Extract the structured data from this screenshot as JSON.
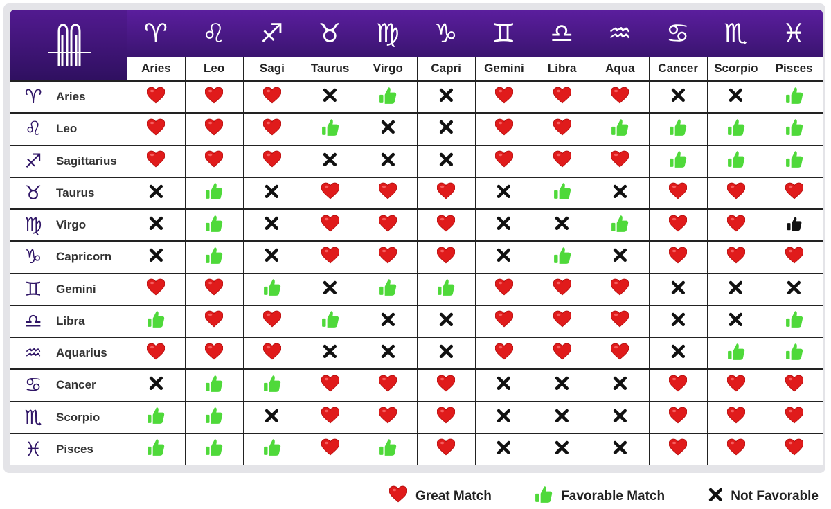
{
  "colors": {
    "header_purple": "#4a1a8a",
    "heart": "#e01b1b",
    "thumb": "#4fd93a",
    "cross": "#111111",
    "icon_purple": "#2f1566"
  },
  "columns": [
    {
      "label": "Aries",
      "icon": "aries-ram-icon",
      "glyph": "♈"
    },
    {
      "label": "Leo",
      "icon": "leo-lion-icon",
      "glyph": "♌"
    },
    {
      "label": "Sagi",
      "icon": "sagittarius-bow-icon",
      "glyph": "♐"
    },
    {
      "label": "Taurus",
      "icon": "taurus-bull-icon",
      "glyph": "♉"
    },
    {
      "label": "Virgo",
      "icon": "virgo-maiden-icon",
      "glyph": "♍"
    },
    {
      "label": "Capri",
      "icon": "capricorn-goat-icon",
      "glyph": "♑"
    },
    {
      "label": "Gemini",
      "icon": "gemini-twins-icon",
      "glyph": "♊"
    },
    {
      "label": "Libra",
      "icon": "libra-scales-icon",
      "glyph": "♎"
    },
    {
      "label": "Aqua",
      "icon": "aquarius-water-bearer-icon",
      "glyph": "♒"
    },
    {
      "label": "Cancer",
      "icon": "cancer-crab-icon",
      "glyph": "♋"
    },
    {
      "label": "Scorpio",
      "icon": "scorpio-scorpion-icon",
      "glyph": "♏"
    },
    {
      "label": "Pisces",
      "icon": "pisces-fish-icon",
      "glyph": "♓"
    }
  ],
  "rows": [
    {
      "label": "Aries",
      "icon": "aries-ram-icon",
      "glyph": "♈"
    },
    {
      "label": "Leo",
      "icon": "leo-lion-icon",
      "glyph": "♌"
    },
    {
      "label": "Sagittarius",
      "icon": "sagittarius-bow-icon",
      "glyph": "♐"
    },
    {
      "label": "Taurus",
      "icon": "taurus-bull-icon",
      "glyph": "♉"
    },
    {
      "label": "Virgo",
      "icon": "virgo-maiden-icon",
      "glyph": "♍"
    },
    {
      "label": "Capricorn",
      "icon": "capricorn-goat-icon",
      "glyph": "♑"
    },
    {
      "label": "Gemini",
      "icon": "gemini-twins-icon",
      "glyph": "♊"
    },
    {
      "label": "Libra",
      "icon": "libra-scales-icon",
      "glyph": "♎"
    },
    {
      "label": "Aquarius",
      "icon": "aquarius-water-bearer-icon",
      "glyph": "♒"
    },
    {
      "label": "Cancer",
      "icon": "cancer-crab-icon",
      "glyph": "♋"
    },
    {
      "label": "Scorpio",
      "icon": "scorpio-scorpion-icon",
      "glyph": "♏"
    },
    {
      "label": "Pisces",
      "icon": "pisces-fish-icon",
      "glyph": "♓"
    }
  ],
  "chart_data": {
    "type": "table",
    "columns": [
      "Aries",
      "Leo",
      "Sagi",
      "Taurus",
      "Virgo",
      "Capri",
      "Gemini",
      "Libra",
      "Aqua",
      "Cancer",
      "Scorpio",
      "Pisces"
    ],
    "rows": [
      "Aries",
      "Leo",
      "Sagittarius",
      "Taurus",
      "Virgo",
      "Capricorn",
      "Gemini",
      "Libra",
      "Aquarius",
      "Cancer",
      "Scorpio",
      "Pisces"
    ],
    "value_codes": {
      "H": "Great Match",
      "T": "Favorable Match",
      "X": "Not Favorable",
      "B": "Favorable Match (black thumb)"
    },
    "values": [
      [
        "H",
        "H",
        "H",
        "X",
        "T",
        "X",
        "H",
        "H",
        "H",
        "X",
        "X",
        "T"
      ],
      [
        "H",
        "H",
        "H",
        "T",
        "X",
        "X",
        "H",
        "H",
        "T",
        "T",
        "T",
        "T"
      ],
      [
        "H",
        "H",
        "H",
        "X",
        "X",
        "X",
        "H",
        "H",
        "H",
        "T",
        "T",
        "T"
      ],
      [
        "X",
        "T",
        "X",
        "H",
        "H",
        "H",
        "X",
        "T",
        "X",
        "H",
        "H",
        "H"
      ],
      [
        "X",
        "T",
        "X",
        "H",
        "H",
        "H",
        "X",
        "X",
        "T",
        "H",
        "H",
        "B"
      ],
      [
        "X",
        "T",
        "X",
        "H",
        "H",
        "H",
        "X",
        "T",
        "X",
        "H",
        "H",
        "H"
      ],
      [
        "H",
        "H",
        "T",
        "X",
        "T",
        "T",
        "H",
        "H",
        "H",
        "X",
        "X",
        "X"
      ],
      [
        "T",
        "H",
        "H",
        "T",
        "X",
        "X",
        "H",
        "H",
        "H",
        "X",
        "X",
        "T"
      ],
      [
        "H",
        "H",
        "H",
        "X",
        "X",
        "X",
        "H",
        "H",
        "H",
        "X",
        "T",
        "T"
      ],
      [
        "X",
        "T",
        "T",
        "H",
        "H",
        "H",
        "X",
        "X",
        "X",
        "H",
        "H",
        "H"
      ],
      [
        "T",
        "T",
        "X",
        "H",
        "H",
        "H",
        "X",
        "X",
        "X",
        "H",
        "H",
        "H"
      ],
      [
        "T",
        "T",
        "T",
        "H",
        "T",
        "H",
        "X",
        "X",
        "X",
        "H",
        "H",
        "H"
      ]
    ],
    "legend": {
      "placement": "bottom-right"
    }
  },
  "legend": [
    {
      "label": "Great Match",
      "code": "H",
      "icon": "heart-icon"
    },
    {
      "label": "Favorable Match",
      "code": "T",
      "icon": "thumbs-up-icon"
    },
    {
      "label": "Not Favorable",
      "code": "X",
      "icon": "cross-icon"
    }
  ]
}
